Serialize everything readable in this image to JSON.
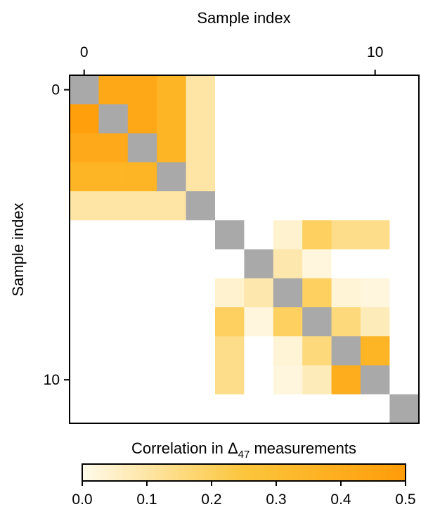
{
  "chart_data": {
    "type": "heatmap",
    "title": "",
    "xlabel": "Sample index",
    "ylabel": "Sample index",
    "x_axis_position": "top",
    "n": 12,
    "xticks": [
      0,
      10
    ],
    "yticks": [
      0,
      10
    ],
    "diagonal_color": "#a9a9a9",
    "colormap": {
      "low": "#fffaeb",
      "mid": "#fcc63c",
      "high": "#ff9c08"
    },
    "colorbar": {
      "label_prefix": "Correlation in Δ",
      "label_subscript": "47",
      "label_suffix": " measurements",
      "range": [
        0,
        0.5
      ],
      "ticks": [
        "0.0",
        "0.1",
        "0.2",
        "0.3",
        "0.4",
        "0.5"
      ],
      "position": "bottom"
    },
    "matrix": [
      [
        null,
        0.43,
        0.43,
        0.36,
        0.1,
        0,
        0,
        0,
        0,
        0,
        0,
        0
      ],
      [
        0.48,
        null,
        0.43,
        0.36,
        0.1,
        0,
        0,
        0,
        0,
        0,
        0,
        0
      ],
      [
        0.42,
        0.42,
        null,
        0.36,
        0.1,
        0,
        0,
        0,
        0,
        0,
        0,
        0
      ],
      [
        0.36,
        0.36,
        0.36,
        null,
        0.1,
        0,
        0,
        0,
        0,
        0,
        0,
        0
      ],
      [
        0.1,
        0.1,
        0.1,
        0.1,
        null,
        0,
        0,
        0,
        0,
        0,
        0,
        0
      ],
      [
        0,
        0,
        0,
        0,
        0,
        null,
        0,
        0.04,
        0.2,
        0.14,
        0.14,
        0
      ],
      [
        0,
        0,
        0,
        0,
        0,
        0,
        null,
        0.09,
        0.02,
        0,
        0,
        0
      ],
      [
        0,
        0,
        0,
        0,
        0,
        0.04,
        0.09,
        null,
        0.2,
        0.03,
        0.02,
        0
      ],
      [
        0,
        0,
        0,
        0,
        0,
        0.2,
        0.02,
        0.2,
        null,
        0.16,
        0.07,
        0
      ],
      [
        0,
        0,
        0,
        0,
        0,
        0.14,
        0,
        0.03,
        0.16,
        null,
        0.36,
        0
      ],
      [
        0,
        0,
        0,
        0,
        0,
        0.14,
        0,
        0.02,
        0.07,
        0.4,
        null,
        0
      ],
      [
        0,
        0,
        0,
        0,
        0,
        0,
        0,
        0,
        0,
        0,
        0,
        null
      ]
    ]
  }
}
